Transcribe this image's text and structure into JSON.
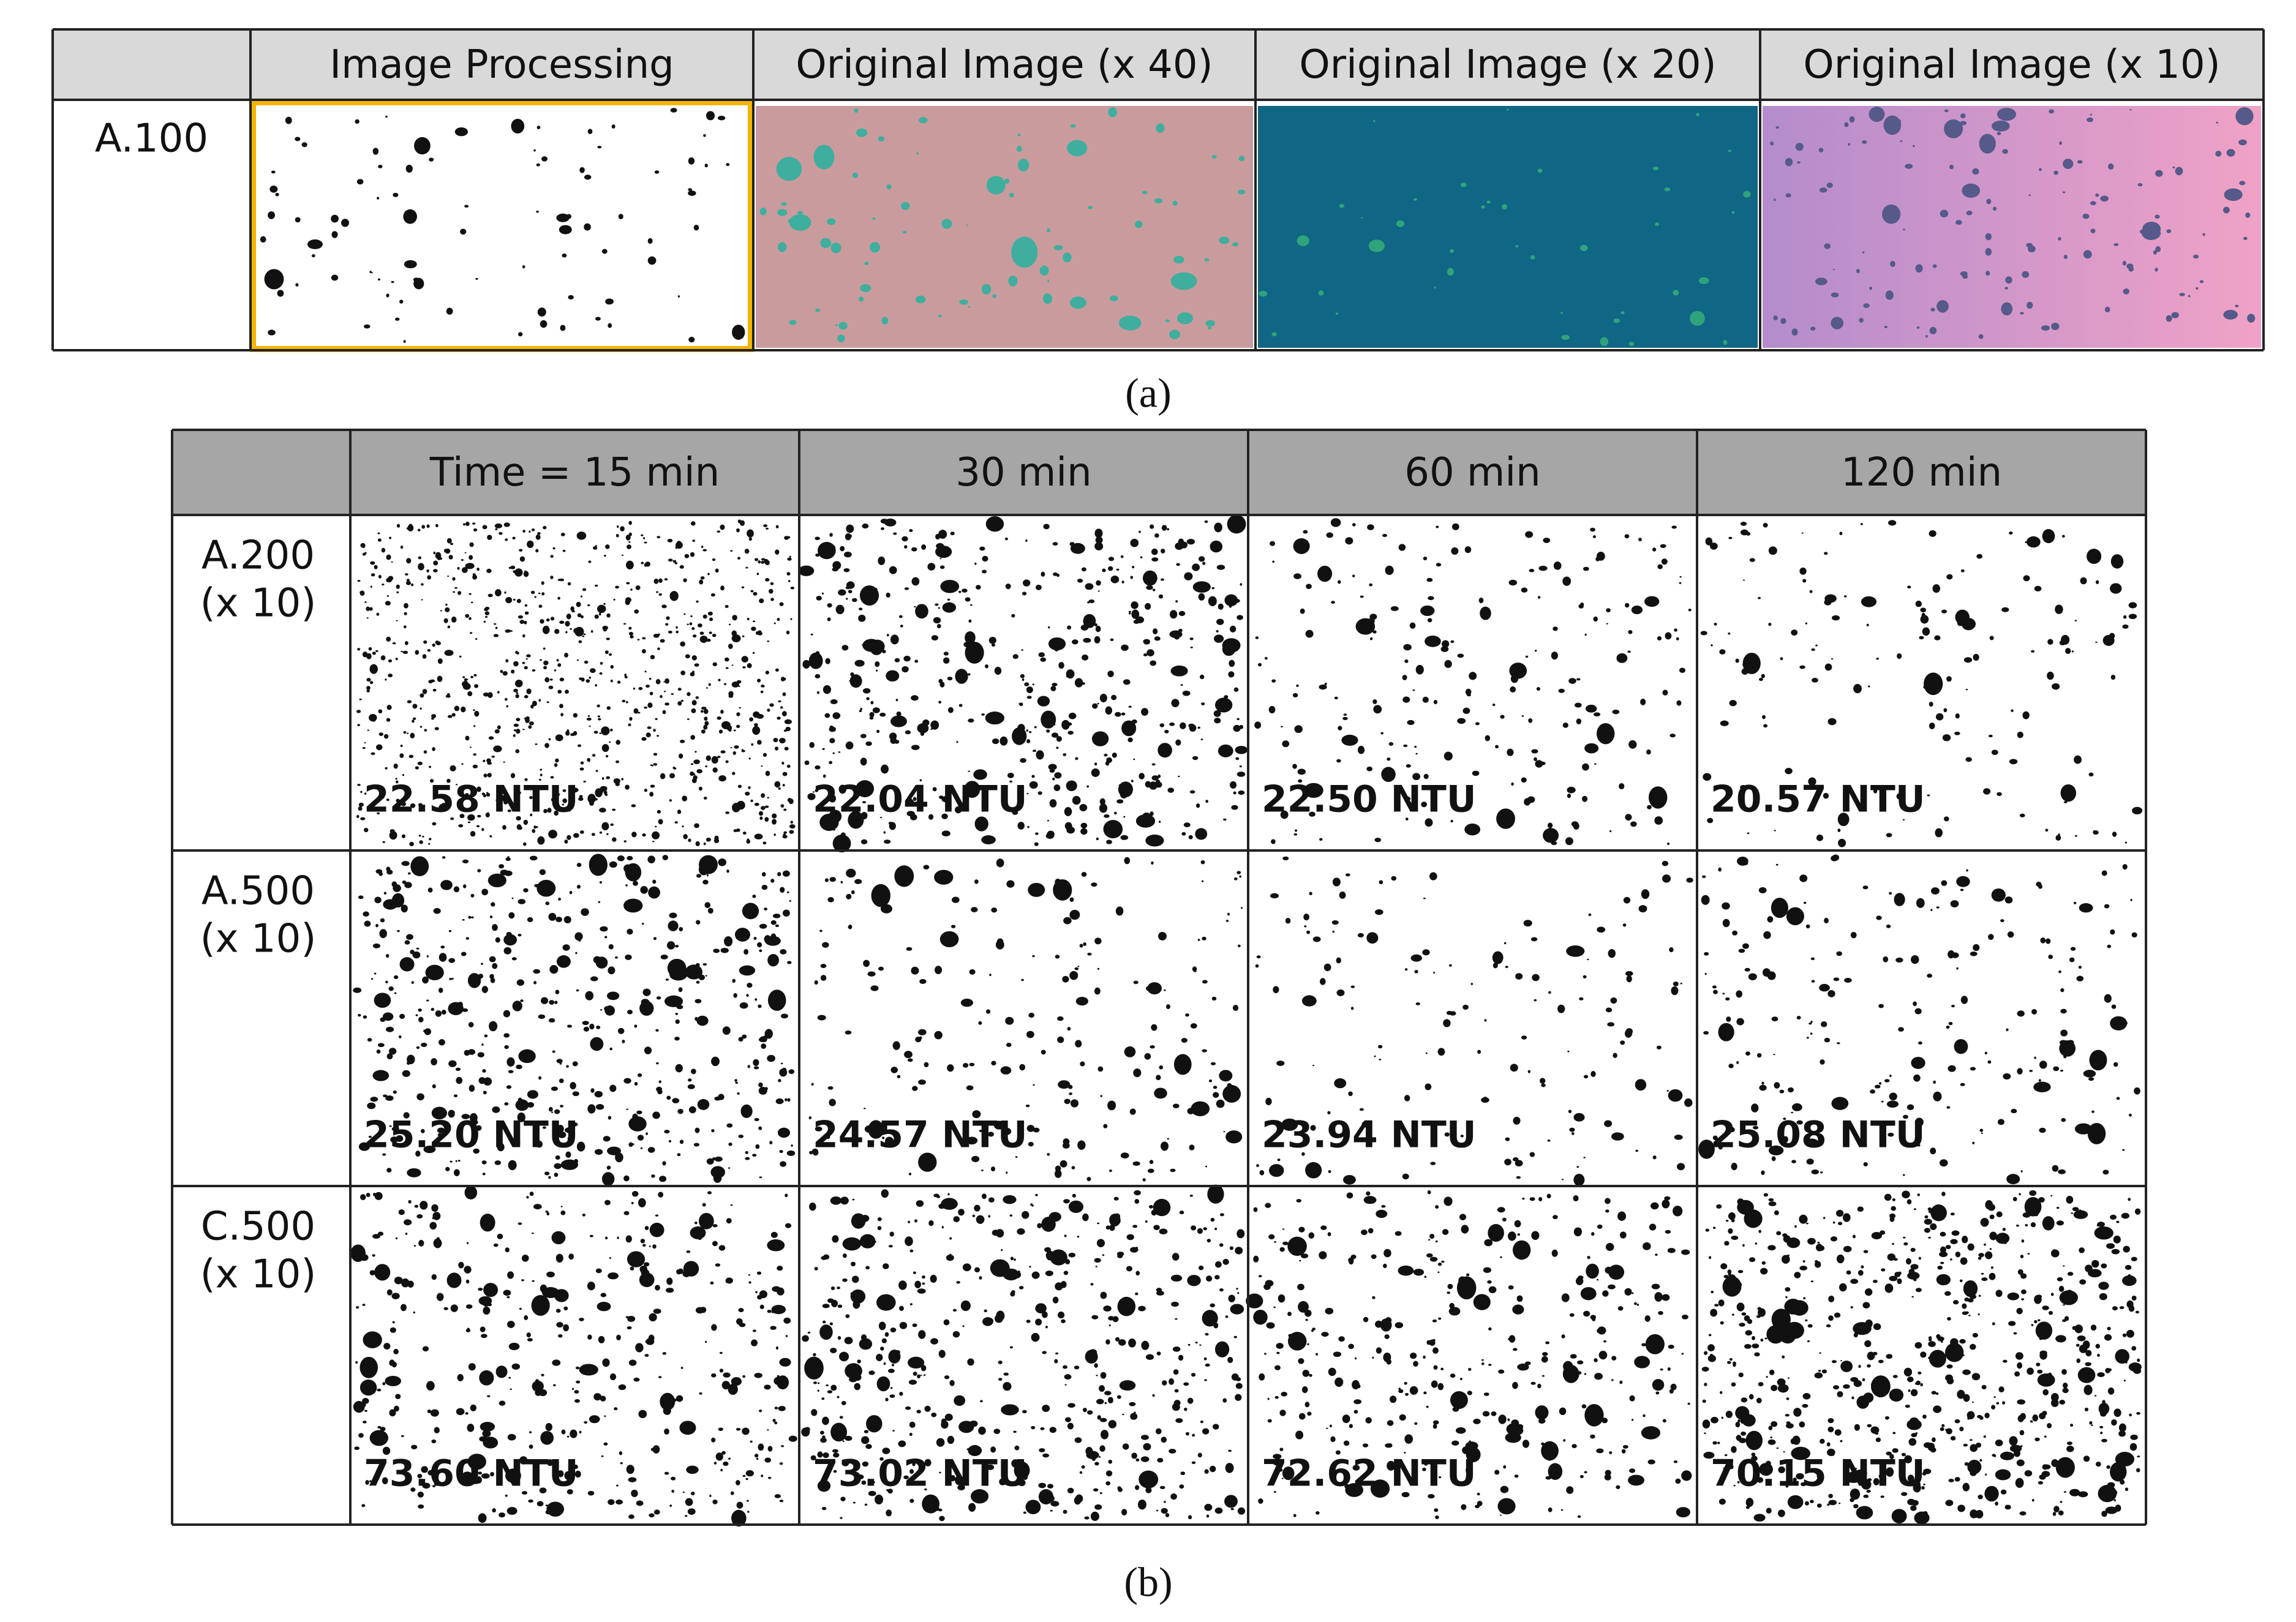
{
  "panel_a": {
    "headers": [
      "Image Processing",
      "Original Image (x 40)",
      "Original Image (x 20)",
      "Original Image (x 10)"
    ],
    "row_label": "A.100",
    "caption": "(a)"
  },
  "panel_b": {
    "headers": [
      "Time = 15 min",
      "30 min",
      "60 min",
      "120 min"
    ],
    "rows": [
      {
        "label": [
          "A.200",
          "(x 10)"
        ],
        "values": [
          "22.58 NTU",
          "22.04 NTU",
          "22.50 NTU",
          "20.57 NTU"
        ]
      },
      {
        "label": [
          "A.500",
          "(x 10)"
        ],
        "values": [
          "25.20 NTU",
          "24.57 NTU",
          "23.94 NTU",
          "25.08 NTU"
        ]
      },
      {
        "label": [
          "C.500",
          "(x 10)"
        ],
        "values": [
          "73.60 NTU",
          "73.02 NTU",
          "72.62 NTU",
          "70.15 NTU"
        ]
      }
    ],
    "caption": "(b)"
  }
}
